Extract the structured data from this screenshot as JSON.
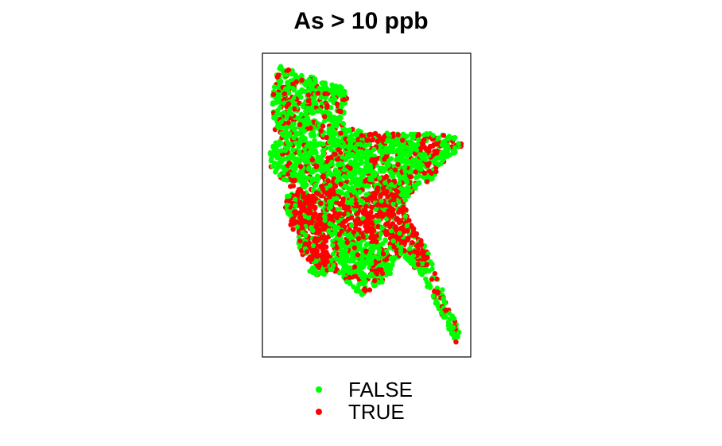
{
  "chart_data": {
    "type": "scatter",
    "title": "As > 10 ppb",
    "legend_position": "bottom",
    "series": [
      {
        "name": "FALSE",
        "color": "#00ff00"
      },
      {
        "name": "TRUE",
        "color": "#ff0000"
      }
    ],
    "colors": {
      "false": "#00ff00",
      "true": "#ff0000",
      "frame": "#000000"
    }
  }
}
